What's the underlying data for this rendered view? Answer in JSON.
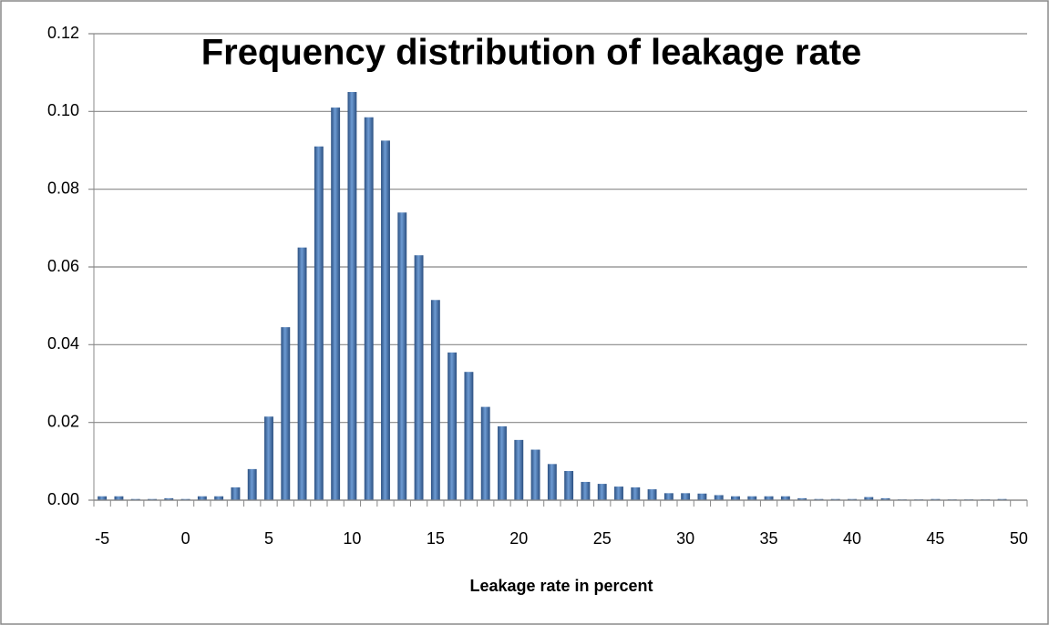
{
  "chart_data": {
    "type": "bar",
    "title": "Frequency distribution of leakage rate",
    "x_label": "Leakage rate in percent",
    "categories": [
      -5,
      null,
      null,
      null,
      null,
      0,
      null,
      null,
      null,
      null,
      5,
      null,
      null,
      null,
      null,
      10,
      null,
      null,
      null,
      null,
      15,
      null,
      null,
      null,
      null,
      20,
      null,
      null,
      null,
      null,
      25,
      null,
      null,
      null,
      null,
      30,
      null,
      null,
      null,
      null,
      35,
      null,
      null,
      null,
      null,
      40,
      null,
      null,
      null,
      null,
      45,
      null,
      null,
      null,
      null,
      50
    ],
    "values": [
      0.001,
      0.001,
      0.0003,
      0.0003,
      0.0005,
      0.0003,
      0.001,
      0.001,
      0.0033,
      0.008,
      0.0215,
      0.0445,
      0.065,
      0.091,
      0.101,
      0.105,
      0.0985,
      0.0925,
      0.074,
      0.063,
      0.0515,
      0.038,
      0.033,
      0.024,
      0.019,
      0.0155,
      0.013,
      0.0093,
      0.0075,
      0.0047,
      0.0042,
      0.0035,
      0.0033,
      0.0028,
      0.0018,
      0.0018,
      0.0017,
      0.0013,
      0.001,
      0.001,
      0.001,
      0.001,
      0.0005,
      0.0003,
      0.0003,
      0.0003,
      0.0008,
      0.0005,
      0.0002,
      0.0002,
      0.0003,
      0.0002,
      0.0002,
      0.0002,
      0.0003,
      0
    ],
    "color": "#4a7ab5",
    "ylim": [
      0,
      0.12
    ],
    "yticks": [
      {
        "value": 0,
        "label": "0.00"
      },
      0.02,
      0.04,
      0.06,
      0.08,
      {
        "value": 0.1,
        "label": "0.10"
      },
      0.12
    ],
    "grid": true
  }
}
